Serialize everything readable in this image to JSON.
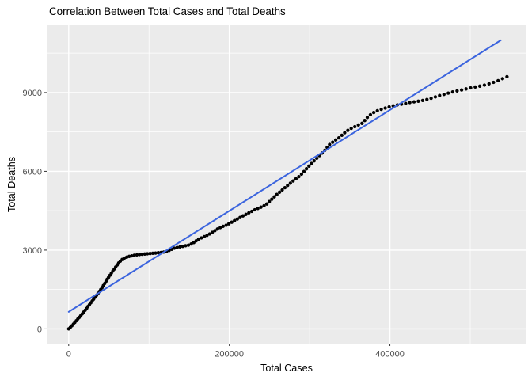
{
  "chart_data": {
    "type": "scatter",
    "title": "Correlation Between Total Cases and Total Deaths",
    "xlabel": "Total Cases",
    "ylabel": "Total Deaths",
    "x_ticks": [
      0,
      200000,
      400000
    ],
    "x_tick_labels": [
      "0",
      "200000",
      "400000"
    ],
    "x_minor_ticks": [
      100000,
      300000,
      500000
    ],
    "y_ticks": [
      0,
      3000,
      6000,
      9000
    ],
    "y_tick_labels": [
      "0",
      "3000",
      "6000",
      "9000"
    ],
    "y_minor_ticks": [
      1500,
      4500,
      7500,
      10500
    ],
    "xlim": [
      -27400,
      570000
    ],
    "ylim": [
      -560,
      11560
    ],
    "grid": true,
    "legend": false,
    "colors": {
      "panel_bg": "#EBEBEB",
      "grid": "#FFFFFF",
      "tick_mark": "#333333",
      "tick_label": "#4D4D4D",
      "point": "#000000",
      "regression_line": "#3B64DE"
    },
    "series": [
      {
        "name": "observations",
        "type": "points",
        "color": "#000000",
        "points": [
          [
            0,
            0
          ],
          [
            4000,
            120
          ],
          [
            8000,
            260
          ],
          [
            12000,
            400
          ],
          [
            16000,
            540
          ],
          [
            20000,
            690
          ],
          [
            24000,
            850
          ],
          [
            28000,
            1010
          ],
          [
            32000,
            1170
          ],
          [
            36000,
            1330
          ],
          [
            40000,
            1500
          ],
          [
            44000,
            1690
          ],
          [
            48000,
            1890
          ],
          [
            52000,
            2070
          ],
          [
            56000,
            2250
          ],
          [
            60000,
            2420
          ],
          [
            63000,
            2540
          ],
          [
            66000,
            2630
          ],
          [
            69000,
            2690
          ],
          [
            72000,
            2730
          ],
          [
            76000,
            2770
          ],
          [
            81000,
            2800
          ],
          [
            87000,
            2830
          ],
          [
            94000,
            2850
          ],
          [
            101000,
            2870
          ],
          [
            108000,
            2890
          ],
          [
            115000,
            2910
          ],
          [
            121000,
            2940
          ],
          [
            126000,
            3000
          ],
          [
            131000,
            3070
          ],
          [
            137000,
            3110
          ],
          [
            143000,
            3150
          ],
          [
            149000,
            3190
          ],
          [
            155000,
            3270
          ],
          [
            161000,
            3410
          ],
          [
            167000,
            3490
          ],
          [
            173000,
            3570
          ],
          [
            179000,
            3680
          ],
          [
            185000,
            3800
          ],
          [
            191000,
            3890
          ],
          [
            197000,
            3960
          ],
          [
            204000,
            4080
          ],
          [
            211000,
            4200
          ],
          [
            218000,
            4320
          ],
          [
            225000,
            4430
          ],
          [
            232000,
            4540
          ],
          [
            239000,
            4630
          ],
          [
            246000,
            4730
          ],
          [
            253000,
            4940
          ],
          [
            260000,
            5140
          ],
          [
            267000,
            5320
          ],
          [
            274000,
            5500
          ],
          [
            281000,
            5670
          ],
          [
            288000,
            5830
          ],
          [
            295000,
            6060
          ],
          [
            301000,
            6260
          ],
          [
            307000,
            6440
          ],
          [
            313000,
            6620
          ],
          [
            319000,
            6800
          ],
          [
            325000,
            7030
          ],
          [
            331000,
            7160
          ],
          [
            338000,
            7310
          ],
          [
            345000,
            7510
          ],
          [
            352000,
            7640
          ],
          [
            359000,
            7740
          ],
          [
            366000,
            7840
          ],
          [
            372000,
            8060
          ],
          [
            377000,
            8190
          ],
          [
            382000,
            8280
          ],
          [
            388000,
            8350
          ],
          [
            394000,
            8410
          ],
          [
            401000,
            8470
          ],
          [
            409000,
            8530
          ],
          [
            417000,
            8570
          ],
          [
            426000,
            8630
          ],
          [
            435000,
            8670
          ],
          [
            443000,
            8710
          ],
          [
            451000,
            8780
          ],
          [
            459000,
            8860
          ],
          [
            467000,
            8930
          ],
          [
            475000,
            9000
          ],
          [
            483000,
            9060
          ],
          [
            491000,
            9110
          ],
          [
            499000,
            9170
          ],
          [
            506000,
            9210
          ],
          [
            513000,
            9250
          ],
          [
            520000,
            9300
          ],
          [
            527000,
            9370
          ],
          [
            533000,
            9430
          ],
          [
            539000,
            9510
          ],
          [
            544000,
            9580
          ],
          [
            547000,
            9620
          ]
        ]
      },
      {
        "name": "linear_fit",
        "type": "line",
        "color": "#3B64DE",
        "points": [
          [
            0,
            650
          ],
          [
            538000,
            10990
          ]
        ]
      }
    ]
  }
}
